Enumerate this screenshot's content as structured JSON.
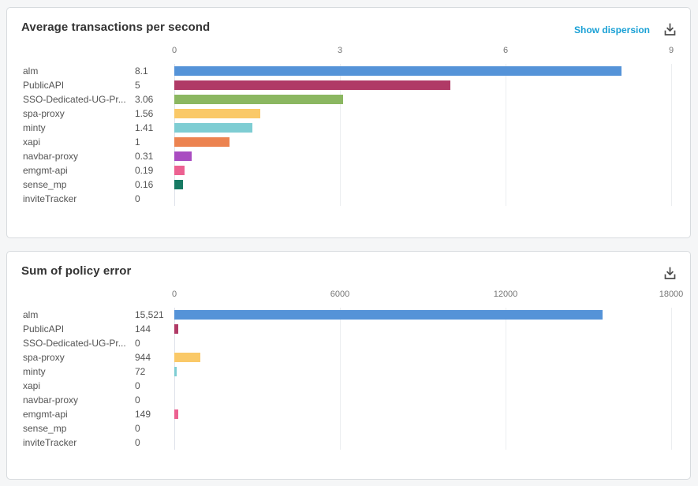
{
  "links": {
    "show_dispersion": "Show dispersion"
  },
  "icons": {
    "download": "tray-arrow-down"
  },
  "chart_data": [
    {
      "type": "bar",
      "orientation": "horizontal",
      "title": "Average transactions per second",
      "categories": [
        "alm",
        "PublicAPI",
        "SSO-Dedicated-UG-Pr...",
        "spa-proxy",
        "minty",
        "xapi",
        "navbar-proxy",
        "emgmt-api",
        "sense_mp",
        "inviteTracker"
      ],
      "values": [
        8.1,
        5,
        3.06,
        1.56,
        1.41,
        1,
        0.31,
        0.19,
        0.16,
        0
      ],
      "value_labels": [
        "8.1",
        "5",
        "3.06",
        "1.56",
        "1.41",
        "1",
        "0.31",
        "0.19",
        "0.16",
        "0"
      ],
      "bar_colors": [
        "#5593d8",
        "#b03a66",
        "#8bb761",
        "#fac968",
        "#7ecdd3",
        "#ec8350",
        "#a94cc1",
        "#ec6191",
        "#177a63",
        null
      ],
      "xlabel": "",
      "ylabel": "",
      "xlim": [
        0,
        9
      ],
      "xticks": [
        "0",
        "3",
        "6",
        "9"
      ],
      "grid": true,
      "legend": false
    },
    {
      "type": "bar",
      "orientation": "horizontal",
      "title": "Sum of policy error",
      "categories": [
        "alm",
        "PublicAPI",
        "SSO-Dedicated-UG-Pr...",
        "spa-proxy",
        "minty",
        "xapi",
        "navbar-proxy",
        "emgmt-api",
        "sense_mp",
        "inviteTracker"
      ],
      "values": [
        15521,
        144,
        0,
        944,
        72,
        0,
        0,
        149,
        0,
        0
      ],
      "value_labels": [
        "15,521",
        "144",
        "0",
        "944",
        "72",
        "0",
        "0",
        "149",
        "0",
        "0"
      ],
      "bar_colors": [
        "#5593d8",
        "#b03a66",
        null,
        "#fac968",
        "#7ecdd3",
        null,
        null,
        "#ec6191",
        null,
        null
      ],
      "xlabel": "",
      "ylabel": "",
      "xlim": [
        0,
        18000
      ],
      "xticks": [
        "0",
        "6000",
        "12000",
        "18000"
      ],
      "grid": true,
      "legend": false
    }
  ]
}
